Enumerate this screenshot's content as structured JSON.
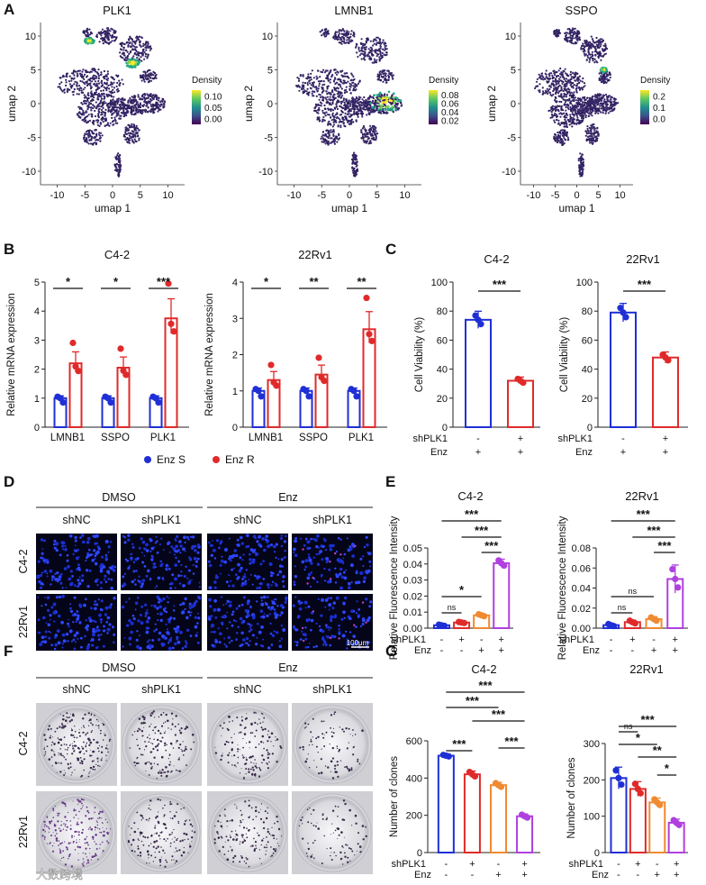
{
  "panel_letters": [
    "A",
    "B",
    "C",
    "D",
    "E",
    "F",
    "G"
  ],
  "umap": {
    "xlabel": "umap 1",
    "ylabel": "umap 2",
    "xticks": [
      "-10",
      "-5",
      "0",
      "5",
      "10"
    ],
    "yticks": [
      "10",
      "5",
      "0",
      "-5",
      "-10"
    ],
    "legend_title": "Density",
    "plots": [
      {
        "title": "PLK1",
        "legend_ticks": [
          "0.10",
          "0.05",
          "0.00"
        ]
      },
      {
        "title": "LMNB1",
        "legend_ticks": [
          "0.08",
          "0.06",
          "0.04",
          "0.02"
        ]
      },
      {
        "title": "SSPO",
        "legend_ticks": [
          "0.2",
          "0.1",
          "0.0"
        ]
      }
    ]
  },
  "colors": {
    "enz_s": "#1f2fd6",
    "enz_r": "#e02a2a",
    "orange": "#f08a30",
    "purple": "#b040e0",
    "nucleus": "#1a2fd0"
  },
  "legend_b": {
    "s": "Enz S",
    "r": "Enz R"
  },
  "xcat_labels": {
    "shplk1": "shPLK1",
    "enz": "Enz",
    "minus": "-",
    "plus": "+"
  },
  "bc_conditions": {
    "shplk1": [
      "-",
      "+"
    ],
    "enz": [
      "+",
      "+"
    ]
  },
  "eg_conditions": {
    "shplk1": [
      "-",
      "+",
      "-",
      "+"
    ],
    "enz": [
      "-",
      "-",
      "+",
      "+"
    ]
  },
  "images": {
    "groups": [
      "DMSO",
      "Enz"
    ],
    "cols": [
      "shNC",
      "shPLK1",
      "shNC",
      "shPLK1"
    ],
    "rows": [
      "C4-2",
      "22Rv1"
    ],
    "scale_bar": "100μm"
  },
  "watermark": "大数跨境",
  "chart_data": [
    {
      "panel": "B",
      "type": "bar",
      "title": "C4-2",
      "ylabel": "Relative mRNA expression",
      "ylim": [
        0,
        5
      ],
      "yticks": [
        "0",
        "1",
        "2",
        "3",
        "4",
        "5"
      ],
      "categories": [
        "LMNB1",
        "SSPO",
        "PLK1"
      ],
      "series": [
        {
          "name": "Enz S",
          "values": [
            1,
            1,
            1
          ]
        },
        {
          "name": "Enz R",
          "values": [
            2.2,
            2.05,
            3.75
          ]
        }
      ],
      "significance": [
        "*",
        "*",
        "***"
      ]
    },
    {
      "panel": "B",
      "type": "bar",
      "title": "22Rv1",
      "ylabel": "Relative mRNA expression",
      "ylim": [
        0,
        4
      ],
      "yticks": [
        "0",
        "1",
        "2",
        "3",
        "4"
      ],
      "categories": [
        "LMNB1",
        "SSPO",
        "PLK1"
      ],
      "series": [
        {
          "name": "Enz S",
          "values": [
            1,
            1,
            1
          ]
        },
        {
          "name": "Enz R",
          "values": [
            1.3,
            1.45,
            2.7
          ]
        }
      ],
      "significance": [
        "*",
        "**",
        "**"
      ]
    },
    {
      "panel": "C",
      "type": "bar",
      "title": "C4-2",
      "ylabel": "Cell Viability (%)",
      "ylim": [
        0,
        100
      ],
      "yticks": [
        "0",
        "20",
        "40",
        "60",
        "80",
        "100"
      ],
      "values": [
        74,
        32
      ],
      "significance": "***"
    },
    {
      "panel": "C",
      "type": "bar",
      "title": "22Rv1",
      "ylabel": "Cell Viability (%)",
      "ylim": [
        0,
        100
      ],
      "yticks": [
        "0",
        "20",
        "40",
        "60",
        "80",
        "100"
      ],
      "values": [
        79,
        48
      ],
      "significance": "***"
    },
    {
      "panel": "E",
      "type": "bar",
      "title": "C4-2",
      "ylabel": "Relative Fluorescence Intensity",
      "ylim": [
        0,
        0.05
      ],
      "yticks": [
        "0.00",
        "0.01",
        "0.02",
        "0.03",
        "0.04",
        "0.05"
      ],
      "values": [
        0.0018,
        0.0035,
        0.008,
        0.0405
      ],
      "comparisons": [
        {
          "a": 0,
          "b": 1,
          "label": "ns"
        },
        {
          "a": 0,
          "b": 2,
          "label": "*"
        },
        {
          "a": 2,
          "b": 3,
          "label": "***"
        },
        {
          "a": 1,
          "b": 3,
          "label": "***"
        },
        {
          "a": 0,
          "b": 3,
          "label": "***"
        }
      ]
    },
    {
      "panel": "E",
      "type": "bar",
      "title": "22Rv1",
      "ylabel": "Relative Fluorescence Intensity",
      "ylim": [
        0,
        0.08
      ],
      "yticks": [
        "0.00",
        "0.02",
        "0.04",
        "0.06",
        "0.08"
      ],
      "values": [
        0.003,
        0.006,
        0.009,
        0.049
      ],
      "comparisons": [
        {
          "a": 0,
          "b": 1,
          "label": "ns"
        },
        {
          "a": 0,
          "b": 2,
          "label": "ns"
        },
        {
          "a": 2,
          "b": 3,
          "label": "***"
        },
        {
          "a": 1,
          "b": 3,
          "label": "***"
        },
        {
          "a": 0,
          "b": 3,
          "label": "***"
        }
      ]
    },
    {
      "panel": "G",
      "type": "bar",
      "title": "C4-2",
      "ylabel": "Number of clones",
      "ylim": [
        0,
        600
      ],
      "yticks": [
        "0",
        "200",
        "400",
        "600"
      ],
      "values": [
        520,
        420,
        362,
        195
      ],
      "comparisons": [
        {
          "a": 0,
          "b": 1,
          "label": "***"
        },
        {
          "a": 2,
          "b": 3,
          "label": "***"
        },
        {
          "a": 1,
          "b": 3,
          "label": "***"
        },
        {
          "a": 0,
          "b": 2,
          "label": "***"
        },
        {
          "a": 0,
          "b": 3,
          "label": "***"
        }
      ]
    },
    {
      "panel": "G",
      "type": "bar",
      "title": "22Rv1",
      "ylabel": "Number of clones",
      "ylim": [
        0,
        300
      ],
      "yticks": [
        "0",
        "100",
        "200",
        "300"
      ],
      "values": [
        205,
        175,
        138,
        82
      ],
      "comparisons": [
        {
          "a": 0,
          "b": 1,
          "label": "ns"
        },
        {
          "a": 2,
          "b": 3,
          "label": "*"
        },
        {
          "a": 1,
          "b": 3,
          "label": "**"
        },
        {
          "a": 0,
          "b": 2,
          "label": "*"
        },
        {
          "a": 0,
          "b": 3,
          "label": "***"
        }
      ]
    }
  ]
}
